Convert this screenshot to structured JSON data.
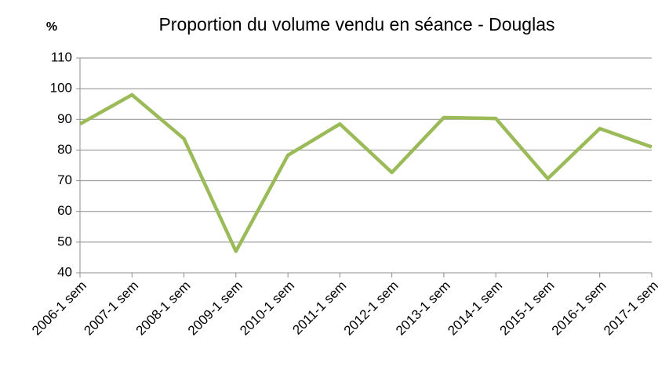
{
  "chart_data": {
    "type": "line",
    "title": "Proportion du volume vendu en séance - Douglas",
    "y_label": "%",
    "categories": [
      "2006-1 sem",
      "2007-1 sem",
      "2008-1 sem",
      "2009-1 sem",
      "2010-1 sem",
      "2011-1 sem",
      "2012-1 sem",
      "2013-1 sem",
      "2014-1 sem",
      "2015-1 sem",
      "2016-1 sem",
      "2017-1 sem"
    ],
    "series": [
      {
        "name": "Douglas",
        "color": "#9bbb59",
        "values": [
          88.5,
          98,
          83.7,
          47,
          78.3,
          88.5,
          72.7,
          90.6,
          90.3,
          70.7,
          87,
          81
        ]
      }
    ],
    "ylim": [
      40,
      110
    ],
    "yticks": [
      40,
      50,
      60,
      70,
      80,
      90,
      100,
      110
    ],
    "grid": true,
    "legend": false
  }
}
